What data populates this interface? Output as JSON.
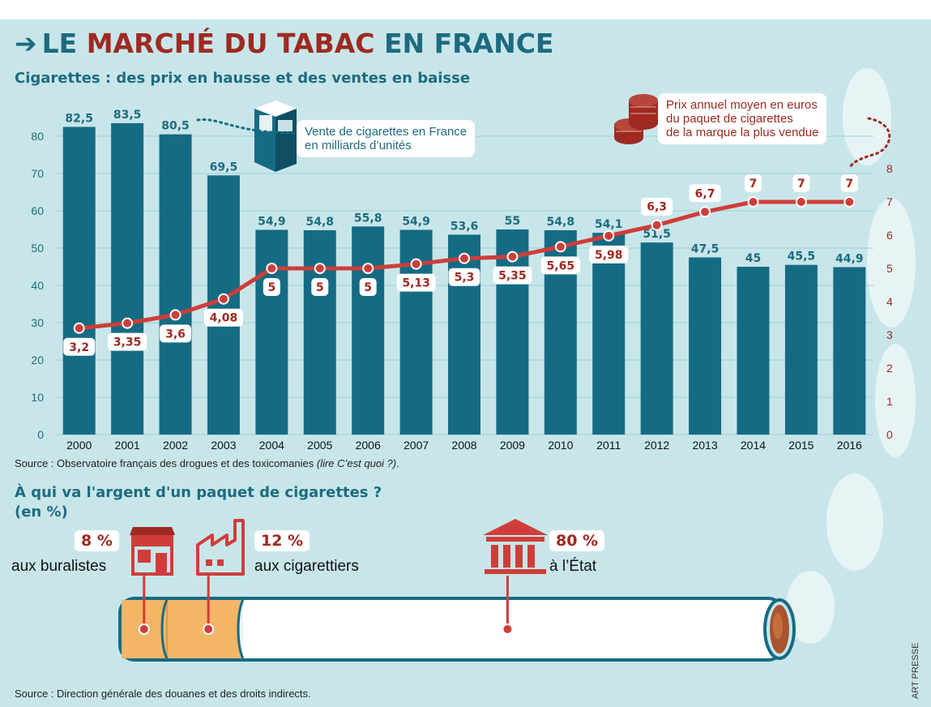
{
  "header": {
    "title_part1": "LE ",
    "title_part2": "MARCHÉ DU TABAC",
    "title_part3": " EN FRANCE",
    "subtitle": "Cigarettes : des prix en hausse et des ventes en baisse"
  },
  "chart_data": {
    "type": "bar",
    "categories": [
      "2000",
      "2001",
      "2002",
      "2003",
      "2004",
      "2005",
      "2006",
      "2007",
      "2008",
      "2009",
      "2010",
      "2011",
      "2012",
      "2013",
      "2014",
      "2015",
      "2016"
    ],
    "series": [
      {
        "name": "Vente de cigarettes en France en milliards d’unités",
        "type": "bar",
        "axis": "left",
        "values": [
          82.5,
          83.5,
          80.5,
          69.5,
          54.9,
          54.8,
          55.8,
          54.9,
          53.6,
          55,
          54.8,
          54.1,
          51.5,
          47.5,
          45,
          45.5,
          44.9
        ],
        "labels": [
          "82,5",
          "83,5",
          "80,5",
          "69,5",
          "54,9",
          "54,8",
          "55,8",
          "54,9",
          "53,6",
          "55",
          "54,8",
          "54,1",
          "51,5",
          "47,5",
          "45",
          "45,5",
          "44,9"
        ]
      },
      {
        "name": "Prix annuel moyen en euros du paquet de cigarettes de la marque la plus vendue",
        "type": "line",
        "axis": "right",
        "values": [
          3.2,
          3.35,
          3.6,
          4.08,
          5,
          5,
          5,
          5.13,
          5.3,
          5.35,
          5.65,
          5.98,
          6.3,
          6.7,
          7,
          7,
          7
        ],
        "labels": [
          "3,2",
          "3,35",
          "3,6",
          "4,08",
          "5",
          "5",
          "5",
          "5,13",
          "5,3",
          "5,35",
          "5,65",
          "5,98",
          "6,3",
          "6,7",
          "7",
          "7",
          "7"
        ]
      }
    ],
    "y_left": {
      "ylim": [
        0,
        85
      ],
      "ticks": [
        "0",
        "10",
        "20",
        "30",
        "40",
        "50",
        "60",
        "70",
        "80"
      ]
    },
    "y_right": {
      "ylim": [
        0,
        8.3
      ],
      "ticks": [
        "0",
        "1",
        "2",
        "3",
        "4",
        "5",
        "6",
        "7",
        "8"
      ]
    },
    "notes": {
      "sales_line1": "Vente de cigarettes en France",
      "sales_line2": "en milliards d’unités",
      "price_line1": "Prix annuel moyen en euros",
      "price_line2": "du paquet de cigarettes",
      "price_line3": "de la marque la plus vendue"
    },
    "colors": {
      "bar": "#166b84",
      "line": "#cf3d3a",
      "label_red": "#9e2a22",
      "background": "#c8e6e9"
    }
  },
  "source1": {
    "text": "Source : Observatoire français des drogues et des toxicomanies ",
    "italic": "(lire C’est quoi ?)",
    "end": "."
  },
  "distribution": {
    "title_line1": "À qui va l'argent d'un paquet de cigarettes ?",
    "title_line2": "(en %)",
    "items": [
      {
        "value": "8 %",
        "label": "aux buralistes",
        "percent": 8,
        "icon": "shop-icon"
      },
      {
        "value": "12 %",
        "label": "aux cigarettiers",
        "percent": 12,
        "icon": "factory-icon"
      },
      {
        "value": "80 %",
        "label": "à l’État",
        "percent": 80,
        "icon": "government-building-icon"
      }
    ]
  },
  "source2": "Source : Direction générale des douanes et des droits indirects.",
  "credit": "ART PRESSE"
}
